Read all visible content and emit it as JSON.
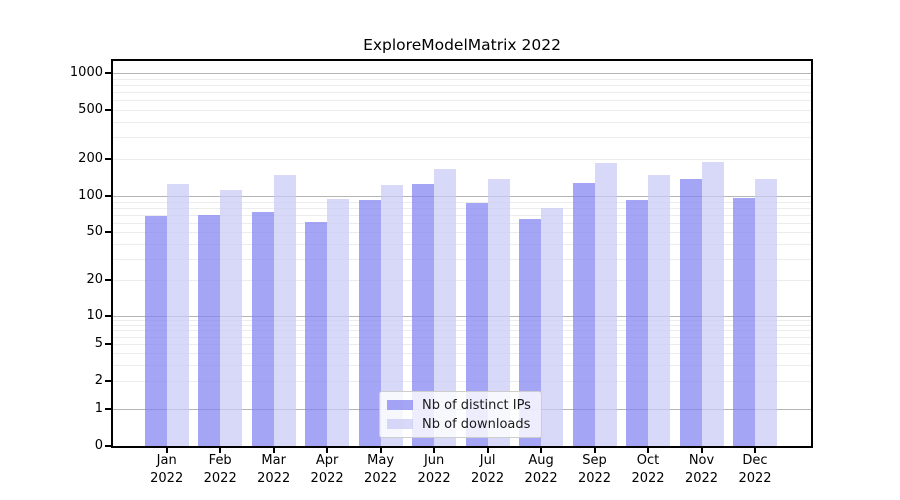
{
  "figure": {
    "background": "#ffffff"
  },
  "chart_data": {
    "type": "bar",
    "title": "ExploreModelMatrix 2022",
    "categories": [
      "Jan 2022",
      "Feb 2022",
      "Mar 2022",
      "Apr 2022",
      "May 2022",
      "Jun 2022",
      "Jul 2022",
      "Aug 2022",
      "Sep 2022",
      "Oct 2022",
      "Nov 2022",
      "Dec 2022"
    ],
    "x_tick_months": [
      "Jan",
      "Feb",
      "Mar",
      "Apr",
      "May",
      "Jun",
      "Jul",
      "Aug",
      "Sep",
      "Oct",
      "Nov",
      "Dec"
    ],
    "x_tick_year": "2022",
    "series": [
      {
        "name": "Nb of distinct IPs",
        "color": "#8282f2",
        "alpha": 0.72,
        "values": [
          68,
          69,
          74,
          61,
          93,
          125,
          88,
          64,
          128,
          92,
          137,
          97
        ]
      },
      {
        "name": "Nb of downloads",
        "color": "#c9c9f7",
        "alpha": 0.72,
        "values": [
          125,
          112,
          148,
          94,
          124,
          165,
          137,
          80,
          187,
          149,
          190,
          137
        ]
      }
    ],
    "yscale": "symlog (log above 1, linear 0 to 1)",
    "ylim": [
      0,
      1250
    ],
    "yticks": [
      0,
      1,
      2,
      5,
      10,
      20,
      50,
      100,
      200,
      500,
      1000
    ],
    "grid": {
      "major_ticks": [
        1,
        10,
        100,
        1000
      ],
      "minor_ticks": "2-9 of each decade",
      "major_color": "#b5b5b5",
      "minor_color": "#ececec",
      "orientation": "horizontal"
    },
    "legend_position": "lower center"
  }
}
